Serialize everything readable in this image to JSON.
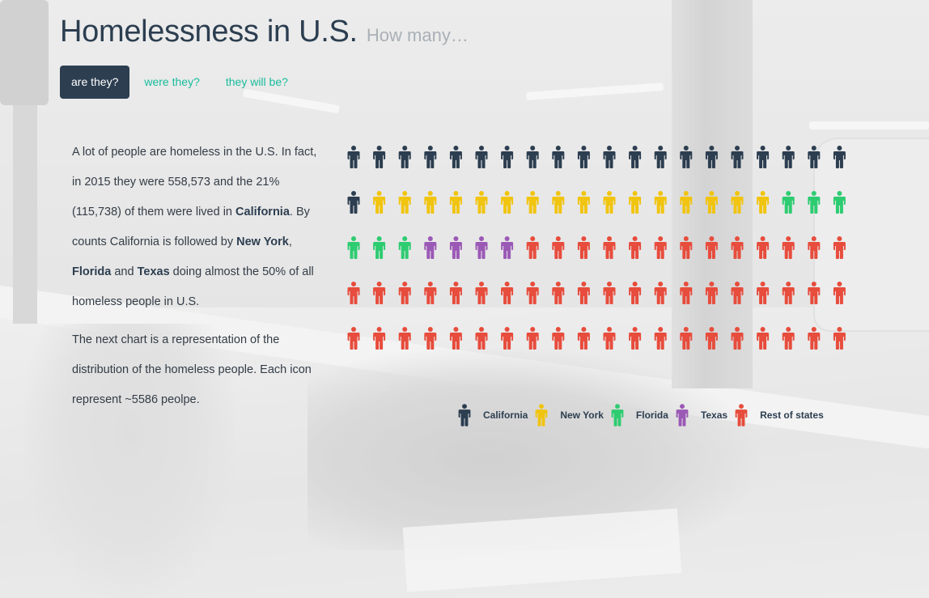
{
  "title": {
    "main": "Homelessness in U.S.",
    "sub": "How many…"
  },
  "tabs": [
    {
      "label": "are they?",
      "active": true
    },
    {
      "label": "were they?",
      "active": false
    },
    {
      "label": "they will be?",
      "active": false
    }
  ],
  "text": {
    "p1_a": "A lot of people are homeless in the U.S. In fact, in 2015 they were 558,573 and the 21% (115,738) of them were lived in ",
    "p1_b1": "California",
    "p1_c": ". By counts California is followed by ",
    "p1_b2": "New York",
    "p1_d": ", ",
    "p1_b3": "Florida",
    "p1_e": " and ",
    "p1_b4": "Texas",
    "p1_f": " doing almost the 50% of all homeless people in U.S.",
    "p2": "The next chart is a representation of the distribution of the homeless people. Each icon represent ~5586 peolpe."
  },
  "colors": {
    "accent_dark": "#2c3e50",
    "tab_link": "#18bc9c"
  },
  "chart_data": {
    "type": "icon-array",
    "columns": 20,
    "rows": 5,
    "people_per_icon": 5586,
    "icon": "person-icon",
    "series": [
      {
        "name": "California",
        "count": 21,
        "color": "#2c3e50"
      },
      {
        "name": "New York",
        "count": 16,
        "color": "#f1c40f"
      },
      {
        "name": "Florida",
        "count": 6,
        "color": "#2ecc71"
      },
      {
        "name": "Texas",
        "count": 4,
        "color": "#9b59b6"
      },
      {
        "name": "Rest of states",
        "count": 53,
        "color": "#e74c3c"
      }
    ],
    "legend_position": "bottom-right"
  }
}
